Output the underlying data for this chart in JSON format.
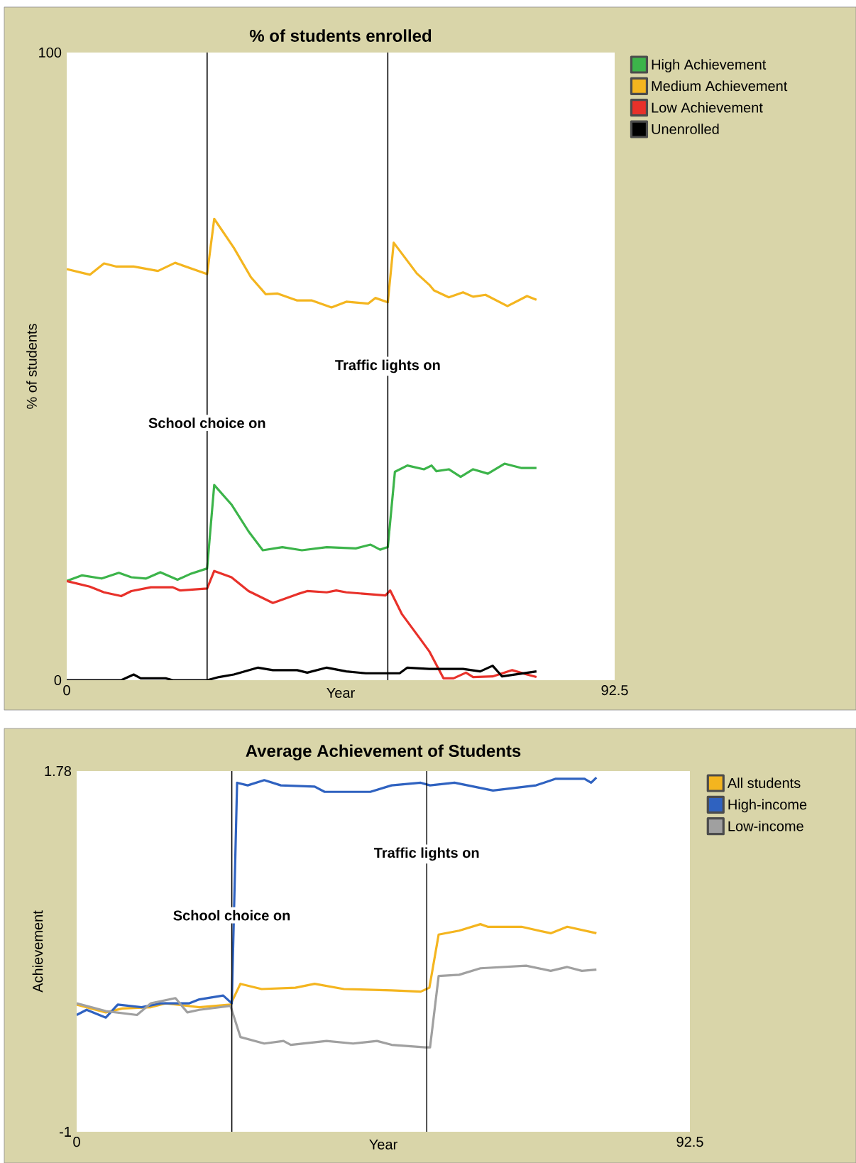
{
  "chart_data": [
    {
      "type": "line",
      "title": "% of students enrolled",
      "xlabel": "Year",
      "ylabel": "% of students",
      "xlim": [
        0,
        92.5
      ],
      "xticks": [
        0,
        92.5
      ],
      "ylim": [
        0,
        100
      ],
      "yticks": [
        0,
        100
      ],
      "legend": "right",
      "line_style": "solid",
      "series": [
        {
          "name": "High Achievement",
          "color": "#3cb44a",
          "x": [
            0,
            2.6,
            5.9,
            8.8,
            10.9,
            13.4,
            15.8,
            18.7,
            20.8,
            23.7,
            24.9,
            27.8,
            30.7,
            33.1,
            36.4,
            39.7,
            43.9,
            48.8,
            51.3,
            52.9,
            54.2,
            55.4,
            57.5,
            60.3,
            61.6,
            62.4,
            64.5,
            66.5,
            68.6,
            71.1,
            73.9,
            76.8,
            79.3
          ],
          "values": [
            15.8,
            16.7,
            16.2,
            17.1,
            16.4,
            16.2,
            17.2,
            16.0,
            16.9,
            17.8,
            31.1,
            28.0,
            23.7,
            20.7,
            21.2,
            20.7,
            21.2,
            21.0,
            21.6,
            20.8,
            21.2,
            33.2,
            34.2,
            33.6,
            34.2,
            33.3,
            33.6,
            32.4,
            33.6,
            32.9,
            34.5,
            33.8,
            33.8
          ]
        },
        {
          "name": "Medium Achievement",
          "color": "#f4b51f",
          "x": [
            0,
            3.9,
            6.3,
            8.4,
            11.3,
            15.4,
            18.3,
            23.7,
            24.9,
            28.2,
            31.1,
            33.6,
            35.6,
            38.9,
            41.4,
            44.7,
            47.2,
            50.9,
            52.1,
            54.2,
            55.2,
            59.1,
            61.2,
            62.0,
            64.5,
            66.9,
            68.6,
            70.7,
            74.4,
            77.7,
            79.3
          ],
          "values": [
            65.5,
            64.6,
            66.4,
            65.9,
            65.9,
            65.2,
            66.5,
            64.7,
            73.5,
            68.9,
            64.2,
            61.5,
            61.6,
            60.5,
            60.5,
            59.4,
            60.3,
            60.0,
            60.9,
            60.2,
            69.7,
            64.8,
            63.0,
            62.1,
            61.0,
            61.8,
            61.1,
            61.4,
            59.6,
            61.2,
            60.6
          ]
        },
        {
          "name": "Low Achievement",
          "color": "#e8312a",
          "x": [
            0,
            3.9,
            6.3,
            9.2,
            10.9,
            14.2,
            17.9,
            19.1,
            23.7,
            24.9,
            27.8,
            30.7,
            34.8,
            38.9,
            40.6,
            43.9,
            45.5,
            47.2,
            53.8,
            54.6,
            56.6,
            59.5,
            61.2,
            63.6,
            65.3,
            67.4,
            68.6,
            71.9,
            75.2,
            77.7,
            79.3
          ],
          "values": [
            15.8,
            14.9,
            14.0,
            13.4,
            14.2,
            14.8,
            14.8,
            14.3,
            14.6,
            17.4,
            16.4,
            14.2,
            12.3,
            13.7,
            14.2,
            14.0,
            14.3,
            14.0,
            13.5,
            14.3,
            10.5,
            6.8,
            4.6,
            0.3,
            0.3,
            1.2,
            0.5,
            0.6,
            1.6,
            0.9,
            0.5
          ]
        },
        {
          "name": "Unenrolled",
          "color": "#000000",
          "x": [
            0,
            9.2,
            11.3,
            12.5,
            16.7,
            17.9,
            20.8,
            23.7,
            25.7,
            28.2,
            32.3,
            34.8,
            38.9,
            40.6,
            43.9,
            47.2,
            50.5,
            56.2,
            57.5,
            61.2,
            66.9,
            69.8,
            71.9,
            73.5,
            79.3
          ],
          "values": [
            0,
            0,
            0.9,
            0.3,
            0.3,
            0,
            0,
            0,
            0.5,
            0.9,
            2.0,
            1.6,
            1.6,
            1.2,
            2.0,
            1.4,
            1.1,
            1.1,
            2.0,
            1.8,
            1.8,
            1.4,
            2.3,
            0.6,
            1.4
          ]
        }
      ],
      "ref_lines": [
        {
          "axis": "x",
          "value": 23.7,
          "label": "School choice on",
          "color": "#000000"
        },
        {
          "axis": "x",
          "value": 54.2,
          "label": "Traffic lights on",
          "color": "#000000"
        }
      ]
    },
    {
      "type": "line",
      "title": "Average Achievement of Students",
      "xlabel": "Year",
      "ylabel": "Achievement",
      "xlim": [
        0,
        92.5
      ],
      "xticks": [
        0,
        92.5
      ],
      "ylim": [
        -1,
        1.78
      ],
      "yticks": [
        -1,
        1.78
      ],
      "legend": "right",
      "line_style": "solid",
      "series": [
        {
          "name": "All students",
          "color": "#f4b51f",
          "x": [
            0,
            2.2,
            4.4,
            6.9,
            11.2,
            13.4,
            18.5,
            23.2,
            24.7,
            27.9,
            33.0,
            35.9,
            40.3,
            47.5,
            51.9,
            53.2,
            54.6,
            57.7,
            60.9,
            62.0,
            67.1,
            71.5,
            74.0,
            78.4
          ],
          "values": [
            -0.02,
            -0.05,
            -0.08,
            -0.05,
            -0.04,
            -0.01,
            -0.04,
            -0.02,
            0.14,
            0.1,
            0.11,
            0.14,
            0.1,
            0.09,
            0.08,
            0.11,
            0.52,
            0.55,
            0.6,
            0.58,
            0.58,
            0.53,
            0.58,
            0.53
          ]
        },
        {
          "name": "High-income",
          "color": "#2f62c0",
          "x": [
            0,
            1.5,
            4.4,
            6.2,
            9.8,
            12.7,
            17.0,
            18.5,
            22.1,
            23.4,
            24.2,
            25.8,
            28.3,
            30.8,
            35.9,
            37.4,
            41.0,
            44.3,
            47.5,
            51.9,
            53.3,
            57.0,
            62.8,
            69.3,
            72.2,
            76.6,
            77.6,
            78.4
          ],
          "values": [
            -0.1,
            -0.06,
            -0.12,
            -0.02,
            -0.04,
            -0.01,
            -0.01,
            0.02,
            0.05,
            -0.01,
            1.69,
            1.67,
            1.71,
            1.67,
            1.66,
            1.62,
            1.62,
            1.62,
            1.67,
            1.69,
            1.67,
            1.69,
            1.63,
            1.67,
            1.72,
            1.72,
            1.69,
            1.73
          ]
        },
        {
          "name": "Low-income",
          "color": "#a0a0a0",
          "x": [
            0,
            2.2,
            4.4,
            9.1,
            11.2,
            14.9,
            16.7,
            18.5,
            23.2,
            24.7,
            28.3,
            31.2,
            32.3,
            37.7,
            41.7,
            45.3,
            47.5,
            52.6,
            53.3,
            54.6,
            57.7,
            60.9,
            67.8,
            71.5,
            74.0,
            76.2,
            78.4
          ],
          "values": [
            -0.01,
            -0.04,
            -0.07,
            -0.1,
            -0.01,
            0.03,
            -0.08,
            -0.06,
            -0.03,
            -0.27,
            -0.32,
            -0.3,
            -0.33,
            -0.3,
            -0.32,
            -0.3,
            -0.33,
            -0.35,
            -0.35,
            0.2,
            0.21,
            0.26,
            0.28,
            0.24,
            0.27,
            0.24,
            0.25
          ]
        }
      ],
      "ref_lines": [
        {
          "axis": "x",
          "value": 23.4,
          "label": "School choice on",
          "color": "#000000"
        },
        {
          "axis": "x",
          "value": 52.8,
          "label": "Traffic lights on",
          "color": "#000000"
        }
      ]
    }
  ]
}
